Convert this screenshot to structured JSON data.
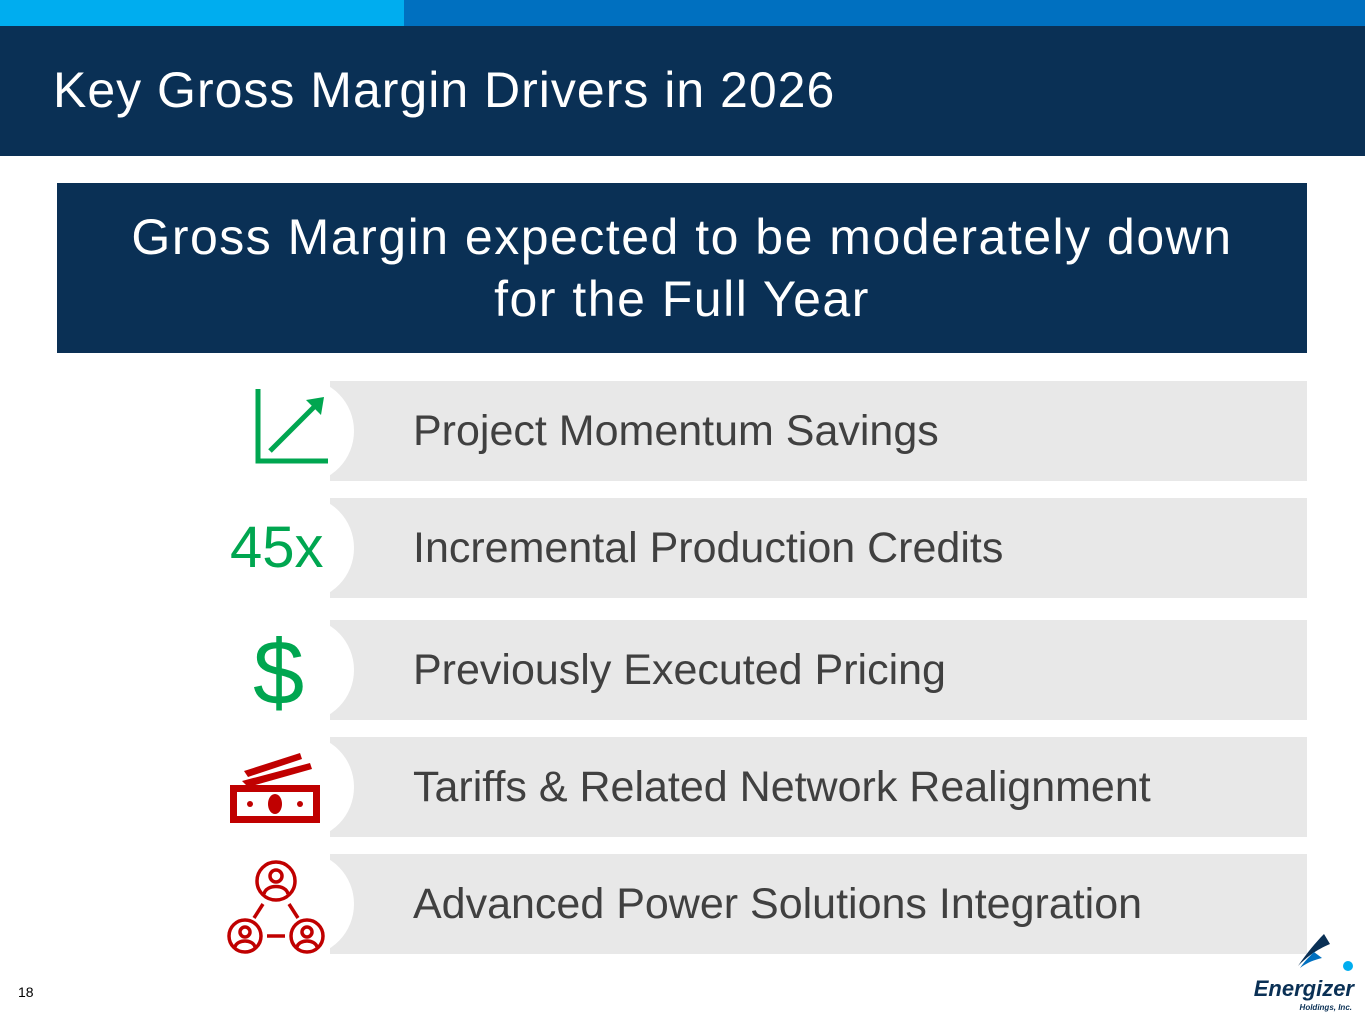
{
  "header": {
    "title": "Key Gross Margin Drivers in 2026"
  },
  "banner": {
    "line1": "Gross Margin expected to be moderately down",
    "line2": "for the Full Year"
  },
  "drivers": [
    {
      "icon": "trend-up-chart-icon",
      "label": "Project Momentum Savings"
    },
    {
      "icon": "45x-credit-icon",
      "icon_text": "45x",
      "label": "Incremental Production Credits"
    },
    {
      "icon": "dollar-sign-icon",
      "icon_text": "$",
      "label": "Previously Executed Pricing"
    },
    {
      "icon": "cash-bills-icon",
      "label": "Tariffs & Related Network Realignment"
    },
    {
      "icon": "people-network-icon",
      "label": "Advanced Power Solutions Integration"
    }
  ],
  "footer": {
    "page_number": "18",
    "logo_name": "Energizer",
    "logo_sub": "Holdings, Inc."
  },
  "colors": {
    "navy": "#0a3055",
    "accent_light_blue": "#00adef",
    "accent_blue": "#0070c0",
    "icon_green": "#00a650",
    "icon_red": "#c00000",
    "row_gray": "#e8e8e8",
    "text_gray": "#404040"
  }
}
